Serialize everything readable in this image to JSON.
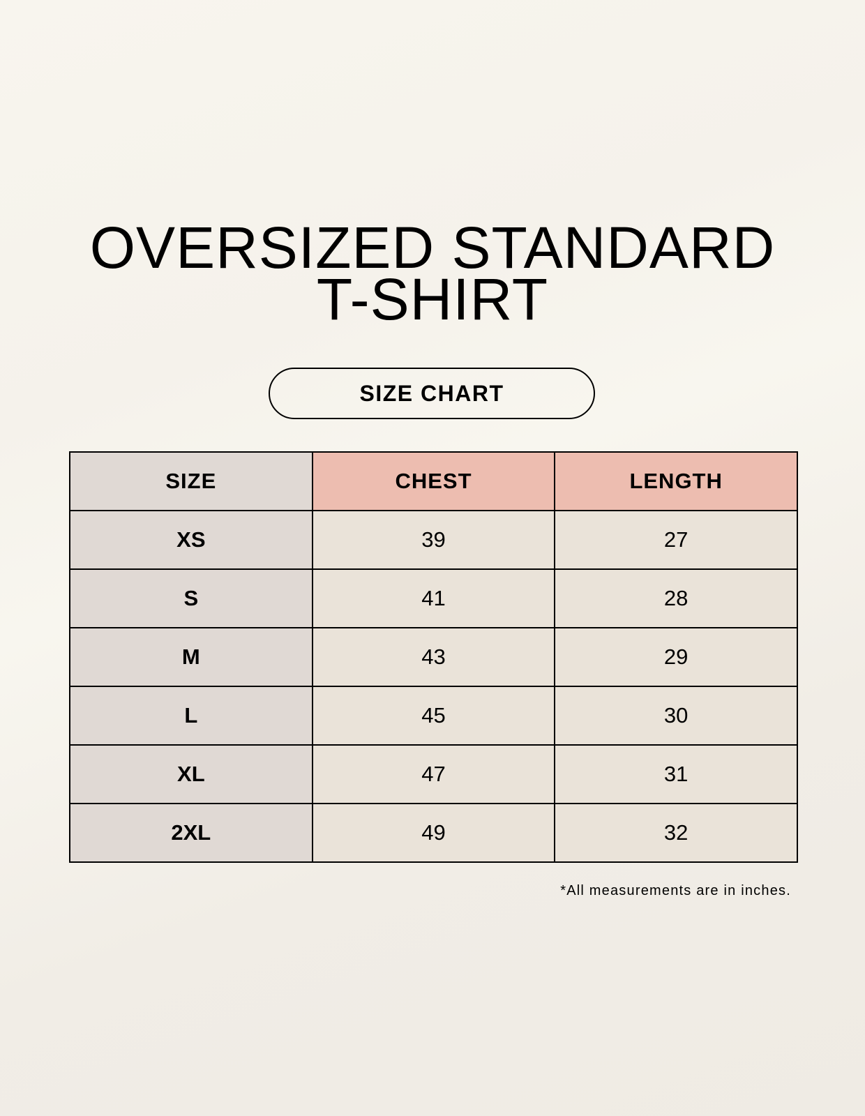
{
  "title_line1": "OVERSIZED STANDARD",
  "title_line2": "T-SHIRT",
  "badge": "SIZE CHART",
  "table": {
    "headers": [
      "SIZE",
      "CHEST",
      "LENGTH"
    ],
    "rows": [
      {
        "size": "XS",
        "chest": "39",
        "length": "27"
      },
      {
        "size": "S",
        "chest": "41",
        "length": "28"
      },
      {
        "size": "M",
        "chest": "43",
        "length": "29"
      },
      {
        "size": "L",
        "chest": "45",
        "length": "30"
      },
      {
        "size": "XL",
        "chest": "47",
        "length": "31"
      },
      {
        "size": "2XL",
        "chest": "49",
        "length": "32"
      }
    ]
  },
  "footnote": "*All measurements are in inches.",
  "colors": {
    "size_column": "#e0d9d4",
    "header_accent": "#edbdb0",
    "value_cells": "#eae3d9"
  }
}
